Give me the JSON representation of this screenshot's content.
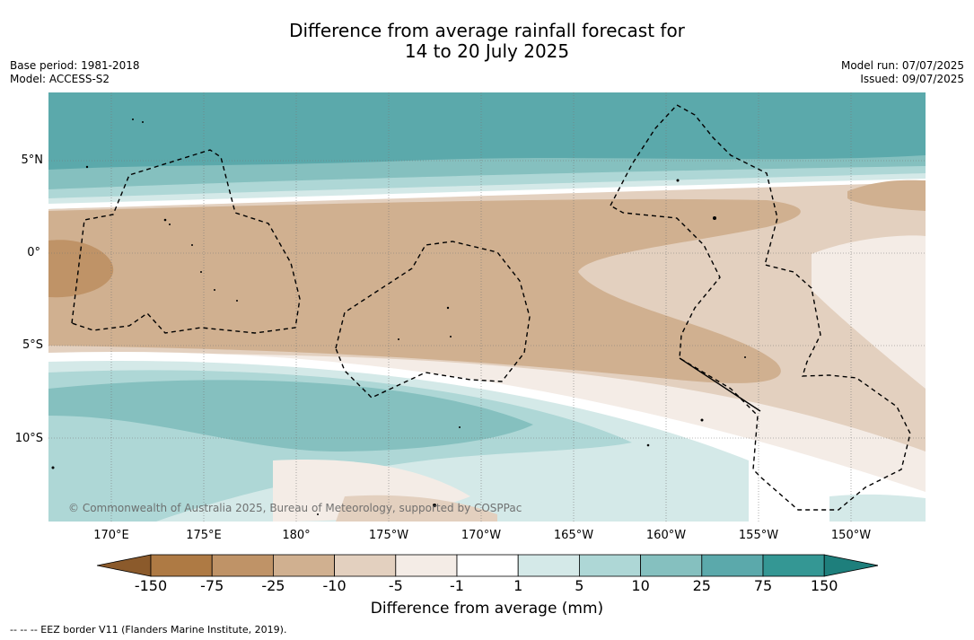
{
  "title": {
    "line1": "Difference from average rainfall forecast for",
    "line2": "14 to 20 July 2025"
  },
  "meta_left": {
    "base_period": "Base period: 1981-2018",
    "model": "Model: ACCESS-S2"
  },
  "meta_right": {
    "model_run": "Model run: 07/07/2025",
    "issued": "Issued: 09/07/2025"
  },
  "lat_labels": [
    "5°N",
    "0°",
    "5°S",
    "10°S"
  ],
  "lon_labels": [
    "170°E",
    "175°E",
    "180°",
    "175°W",
    "170°W",
    "165°W",
    "160°W",
    "155°W",
    "150°W"
  ],
  "credit": "© Commonwealth of Australia 2025, Bureau of Meteorology, supported by COSPPac",
  "colorbar": {
    "ticks": [
      "-150",
      "-75",
      "-25",
      "-10",
      "-5",
      "-1",
      "1",
      "5",
      "10",
      "25",
      "75",
      "150"
    ],
    "colors": [
      "#8b5a2b",
      "#ae7a44",
      "#bf9367",
      "#d0b090",
      "#e3d0bf",
      "#f4ece6",
      "#ffffff",
      "#d4e9e8",
      "#aed7d6",
      "#85c0bf",
      "#5ba9ab",
      "#349794",
      "#1e7f7c"
    ],
    "label": "Difference from average (mm)"
  },
  "footnote": "--  --  -- EEZ border V11 (Flanders Marine Institute, 2019)."
}
